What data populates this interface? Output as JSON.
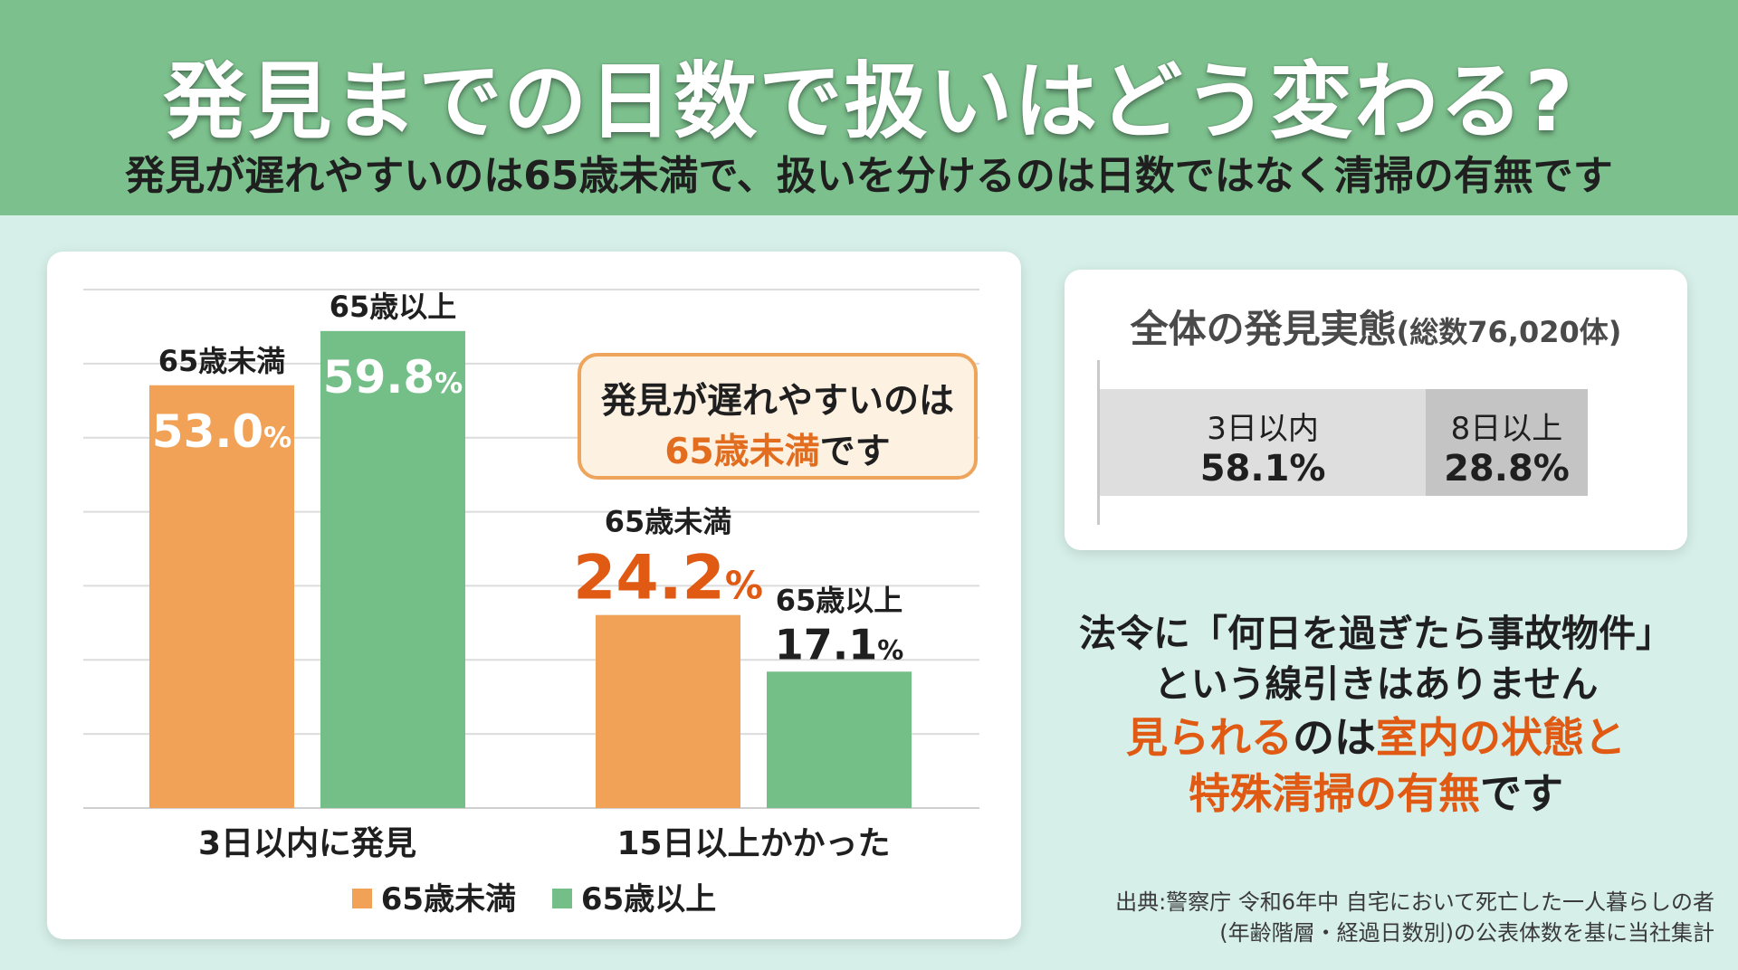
{
  "header": {
    "title": "発見までの日数で扱いはどう変わる?",
    "subtitle": "発見が遅れやすいのは65歳未満で、扱いを分けるのは日数ではなく清掃の有無です"
  },
  "colors": {
    "header_bg": "#7cc08d",
    "under65": "#f2a257",
    "over65": "#74be88",
    "highlight": "#e05a14"
  },
  "chart_data": {
    "type": "bar",
    "categories": [
      "3日以内に発見",
      "15日以上かかった"
    ],
    "series": [
      {
        "name": "65歳未満",
        "values": [
          53.0,
          24.2
        ],
        "value_labels": [
          "53.0%",
          "24.2%"
        ]
      },
      {
        "name": "65歳以上",
        "values": [
          59.8,
          17.1
        ],
        "value_labels": [
          "59.8%",
          "17.1%"
        ]
      }
    ],
    "unit": "%",
    "ylim": [
      0,
      60
    ],
    "grid": true,
    "legend": "bottom"
  },
  "callout": {
    "line1": "発見が遅れやすいのは",
    "highlight": "65歳未満",
    "suffix": "です"
  },
  "summary": {
    "title": "全体の発見実態",
    "total": "(総数76,020体)",
    "segments": [
      {
        "label": "3日以内",
        "value": "58.1%",
        "share": 58.1
      },
      {
        "label": "8日以上",
        "value": "28.8%",
        "share": 28.8
      }
    ]
  },
  "note": {
    "line1": "法令に「何日を過ぎたら事故物件」",
    "line2": "という線引きはありません",
    "line3a": "見られる",
    "line3b": "のは",
    "line3c": "室内の状態と",
    "line4a": "特殊清掃の有無",
    "line4b": "です"
  },
  "source": {
    "line1": "出典:警察庁 令和6年中 自宅において死亡した一人暮らしの者",
    "line2": "(年齢階層・経過日数別)の公表体数を基に当社集計"
  }
}
